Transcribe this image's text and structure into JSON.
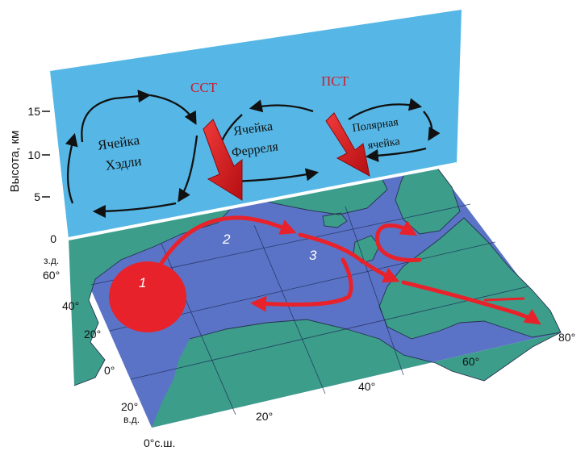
{
  "vertical_panel": {
    "axis_label": "Высота, км",
    "ticks": [
      "15",
      "10",
      "5",
      "0"
    ],
    "cells": [
      {
        "line1": "Ячейка",
        "line2": "Хэдли"
      },
      {
        "line1": "Ячейка",
        "line2": "Ферреля"
      },
      {
        "line1": "Полярная",
        "line2": "ячейка"
      }
    ],
    "jets": [
      "ССТ",
      "ПСТ"
    ]
  },
  "map": {
    "longitude_labels": [
      "з.д.",
      "60°",
      "40°",
      "20°",
      "0°",
      "20°",
      "в.д."
    ],
    "latitude_labels": [
      "0°с.ш.",
      "20°",
      "40°",
      "60°",
      "80°"
    ],
    "current_numbers": [
      "1",
      "2",
      "3"
    ]
  },
  "colors": {
    "panel": "#56b7e6",
    "ocean": "#5b73c6",
    "land": "#3c9d8b",
    "arrow": "#e8222b"
  }
}
